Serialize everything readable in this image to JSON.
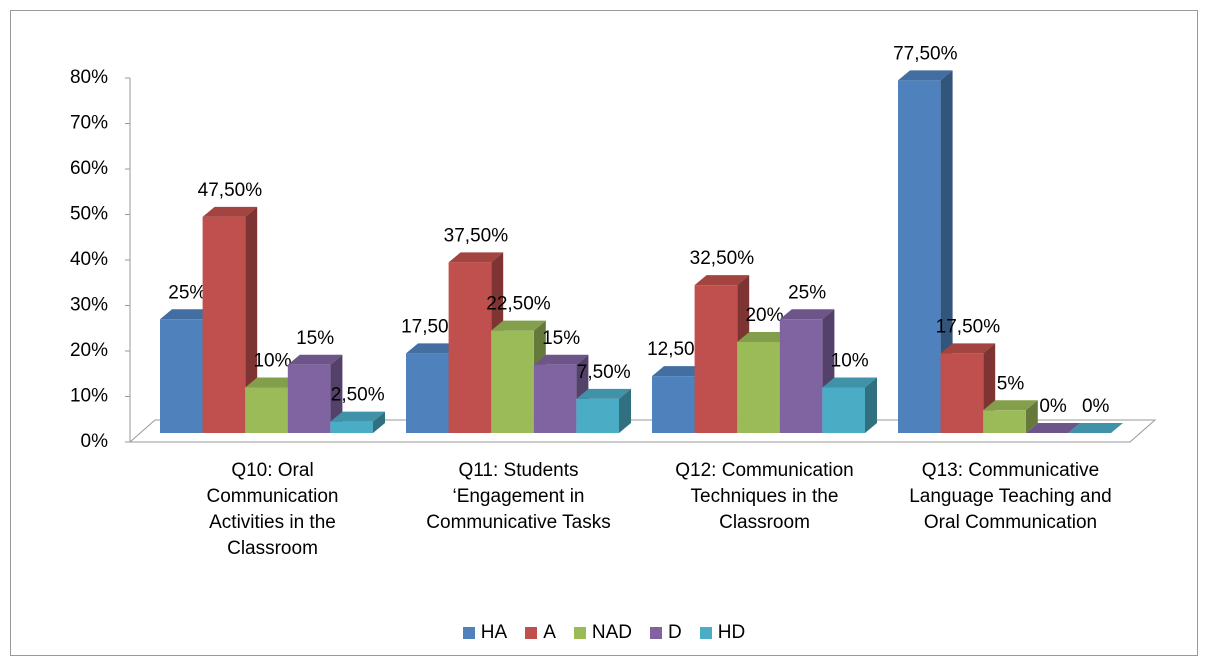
{
  "chart_data": {
    "type": "bar3d",
    "categories": [
      "Q10: Oral Communication Activities in the Classroom",
      "Q11: Students ‘Engagement in Communicative Tasks",
      "Q12: Communication Techniques in the Classroom",
      "Q13: Communicative Language Teaching and Oral Communication"
    ],
    "series": [
      {
        "name": "HA",
        "color": "#4f81bd",
        "values": [
          25,
          17.5,
          12.5,
          77.5
        ],
        "value_labels": [
          "25%",
          "17,50%",
          "12,50%",
          "77,50%"
        ]
      },
      {
        "name": "A",
        "color": "#c0504d",
        "values": [
          47.5,
          37.5,
          32.5,
          17.5
        ],
        "value_labels": [
          "47,50%",
          "37,50%",
          "32,50%",
          "17,50%"
        ]
      },
      {
        "name": "NAD",
        "color": "#9bbb59",
        "values": [
          10,
          22.5,
          20,
          5
        ],
        "value_labels": [
          "10%",
          "22,50%",
          "20%",
          "5%"
        ]
      },
      {
        "name": "D",
        "color": "#8064a2",
        "values": [
          15,
          15,
          25,
          0
        ],
        "value_labels": [
          "15%",
          "15%",
          "25%",
          "0%"
        ]
      },
      {
        "name": "HD",
        "color": "#4bacc6",
        "values": [
          2.5,
          7.5,
          10,
          0
        ],
        "value_labels": [
          "2,50%",
          "7,50%",
          "10%",
          "0%"
        ]
      }
    ],
    "ylim": [
      0,
      80
    ],
    "yticks": [
      {
        "value": 0,
        "label": "0%"
      },
      {
        "value": 10,
        "label": "10%"
      },
      {
        "value": 20,
        "label": "20%"
      },
      {
        "value": 30,
        "label": "30%"
      },
      {
        "value": 40,
        "label": "40%"
      },
      {
        "value": 50,
        "label": "50%"
      },
      {
        "value": 60,
        "label": "60%"
      },
      {
        "value": 70,
        "label": "70%"
      },
      {
        "value": 80,
        "label": "80%"
      }
    ],
    "legend": "bottom"
  }
}
